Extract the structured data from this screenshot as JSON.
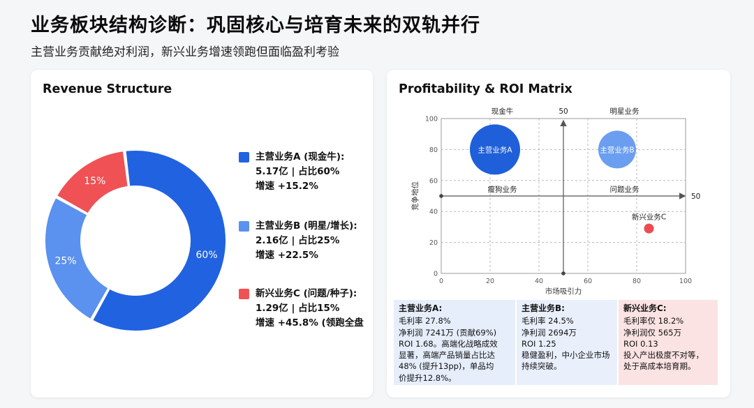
{
  "page": {
    "title": "业务板块结构诊断：巩固核心与培育未来的双轨并行",
    "subtitle": "主营业务贡献绝对利润，新兴业务增速领跑但面临盈利考验"
  },
  "revenue": {
    "card_title": "Revenue Structure",
    "legend": [
      {
        "lines": [
          "主营业务A (现金牛):",
          "5.17亿 | 占比60%",
          "增速 +15.2%"
        ],
        "color": "#2162e0"
      },
      {
        "lines": [
          "主营业务B (明星/增长):",
          "2.16亿 | 占比25%",
          "增速 +22.5%"
        ],
        "color": "#5b91ef"
      },
      {
        "lines": [
          "新兴业务C (问题/种子):",
          "1.29亿 | 占比15%",
          "增速 +45.8% (领跑全盘"
        ],
        "color": "#ef5155"
      }
    ]
  },
  "matrix": {
    "card_title": "Profitability & ROI Matrix",
    "quadrants": {
      "top_left": "现金牛",
      "top_right": "明星业务",
      "bottom_left": "瘦狗业务",
      "bottom_right": "问题业务"
    },
    "divider_labels": {
      "vertical": "50",
      "horizontal": "50"
    },
    "info": [
      {
        "title": "主营业务A:",
        "lines": [
          "毛利率 27.8%",
          "净利润 7241万 (贡献69%)",
          "ROI 1.68。高端化战略成效",
          "显著，高端产品销量占比达",
          "48% (提升13pp)，单品均",
          "价提升12.8%。"
        ],
        "bg": "#e6eefb"
      },
      {
        "title": "主营业务B:",
        "lines": [
          "毛利率 24.5%",
          "净利润 2694万",
          "ROI 1.25",
          "稳健盈利，中小企业市场",
          "持续突破。"
        ],
        "bg": "#e9f0fc"
      },
      {
        "title": "新兴业务C:",
        "lines": [
          "毛利率仅 18.2%",
          "净利润仅 565万",
          "ROI 0.13",
          "投入产出极度不对等，",
          "处于高成本培育期。"
        ],
        "bg": "#fbe3e3"
      }
    ]
  },
  "chart_data": [
    {
      "type": "pie",
      "variant": "donut",
      "title": "Revenue Structure",
      "categories": [
        "主营业务A (现金牛)",
        "主营业务B (明星/增长)",
        "新兴业务C (问题/种子)"
      ],
      "values": [
        60,
        25,
        15
      ],
      "labels": [
        "60%",
        "25%",
        "15%"
      ],
      "colors": [
        "#2162e0",
        "#5b91ef",
        "#ef5155"
      ]
    },
    {
      "type": "scatter",
      "variant": "bubble",
      "title": "Profitability & ROI Matrix",
      "xlabel": "市场吸引力",
      "ylabel": "竞争地位",
      "xlim": [
        0,
        100
      ],
      "ylim": [
        0,
        100
      ],
      "xticks": [
        "0",
        "20",
        "40",
        "60",
        "80",
        "100"
      ],
      "yticks": [
        "0",
        "20",
        "40",
        "60",
        "80",
        "100"
      ],
      "grid": true,
      "points": [
        {
          "name": "主营业务A",
          "x": 22,
          "y": 80,
          "color": "#1f5fd9",
          "size": "large",
          "label_inside": true
        },
        {
          "name": "主营业务B",
          "x": 72,
          "y": 80,
          "color": "#6b9ef0",
          "size": "medium",
          "label_inside": true
        },
        {
          "name": "新兴业务C",
          "x": 85,
          "y": 29,
          "color": "#ee4b52",
          "size": "small",
          "label_inside": false
        }
      ]
    }
  ]
}
